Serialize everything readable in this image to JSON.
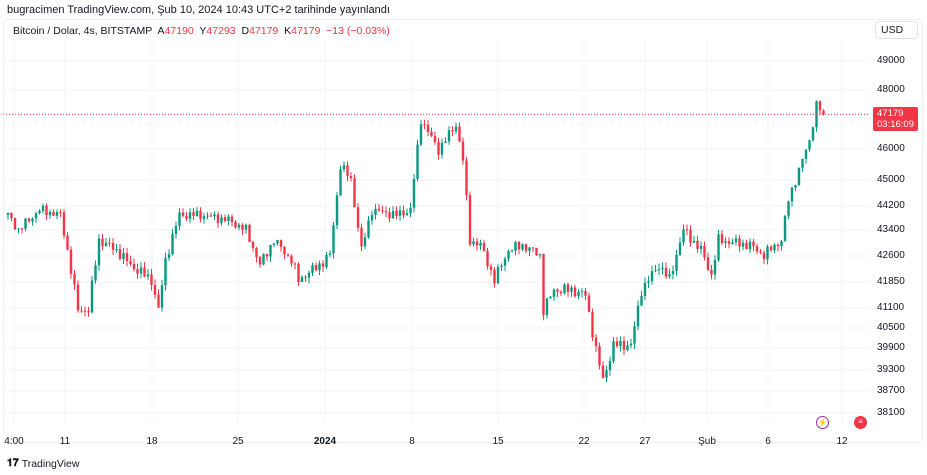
{
  "published": "bugracimen TradingView.com, Şub 10, 2024 10:43 UTC+2 tarihinde yayınlandı",
  "legend": {
    "symbol": "Bitcoin / Dolar, 4s, BITSTAMP",
    "o_label": "A",
    "o": "47190",
    "h_label": "Y",
    "h": "47293",
    "l_label": "D",
    "l": "47179",
    "c_label": "K",
    "c": "47179",
    "change": "−13 (−0.03%)"
  },
  "currency": "USD",
  "price_axis": [
    "49000",
    "48000",
    "46000",
    "45000",
    "44200",
    "43400",
    "42600",
    "41850",
    "41100",
    "40500",
    "39900",
    "39300",
    "38700",
    "38100"
  ],
  "last_price": {
    "price": "47179",
    "countdown": "03:16:09"
  },
  "time_axis": [
    "4:00",
    "11",
    "18",
    "25",
    "2024",
    "8",
    "15",
    "22",
    "27",
    "Şub",
    "6",
    "12"
  ],
  "brand": "TradingView",
  "colors": {
    "up": "#089981",
    "down": "#F23645"
  },
  "chart_data": {
    "type": "candlestick",
    "symbol": "BTCUSD",
    "interval": "4h",
    "keypoints": [
      [
        0,
        43900
      ],
      [
        3,
        43400
      ],
      [
        9,
        44070
      ],
      [
        15,
        43900
      ],
      [
        18,
        42200
      ],
      [
        20,
        41040
      ],
      [
        23,
        41040
      ],
      [
        26,
        43090
      ],
      [
        31,
        42780
      ],
      [
        35,
        42340
      ],
      [
        41,
        41910
      ],
      [
        43,
        41040
      ],
      [
        45,
        42480
      ],
      [
        49,
        43900
      ],
      [
        55,
        43900
      ],
      [
        63,
        43730
      ],
      [
        68,
        43400
      ],
      [
        72,
        42340
      ],
      [
        76,
        43090
      ],
      [
        81,
        42480
      ],
      [
        83,
        41910
      ],
      [
        89,
        42340
      ],
      [
        92,
        42630
      ],
      [
        95,
        45480
      ],
      [
        98,
        45000
      ],
      [
        101,
        42780
      ],
      [
        104,
        44070
      ],
      [
        111,
        43900
      ],
      [
        115,
        44070
      ],
      [
        118,
        47000
      ],
      [
        123,
        45970
      ],
      [
        128,
        46830
      ],
      [
        130,
        45650
      ],
      [
        132,
        43090
      ],
      [
        135,
        42930
      ],
      [
        139,
        41910
      ],
      [
        143,
        42780
      ],
      [
        147,
        42930
      ],
      [
        152,
        42630
      ],
      [
        153,
        41040
      ],
      [
        156,
        41620
      ],
      [
        161,
        41620
      ],
      [
        165,
        41470
      ],
      [
        168,
        39850
      ],
      [
        170,
        39010
      ],
      [
        173,
        39990
      ],
      [
        178,
        39990
      ],
      [
        181,
        41620
      ],
      [
        186,
        42340
      ],
      [
        189,
        41910
      ],
      [
        193,
        43400
      ],
      [
        198,
        42780
      ],
      [
        201,
        42050
      ],
      [
        203,
        43090
      ],
      [
        212,
        42930
      ],
      [
        216,
        42630
      ],
      [
        221,
        43090
      ],
      [
        223,
        44390
      ],
      [
        226,
        45320
      ],
      [
        229,
        46290
      ],
      [
        231,
        47490
      ],
      [
        233,
        47179
      ]
    ]
  }
}
